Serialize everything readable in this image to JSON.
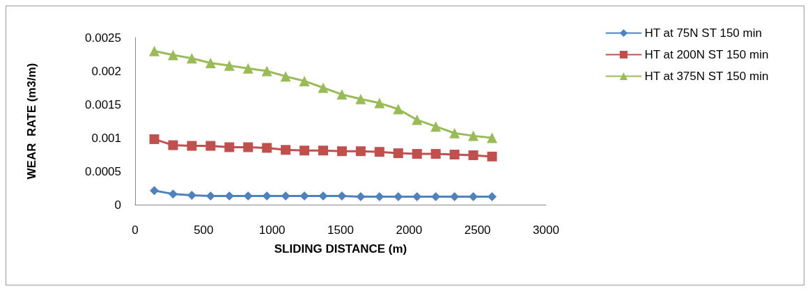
{
  "chart_data": {
    "type": "line",
    "xlabel": "SLIDING DISTANCE (m)",
    "ylabel": "WEAR  RATE (m3/m)",
    "x": [
      140,
      277,
      414,
      551,
      688,
      825,
      962,
      1099,
      1236,
      1373,
      1510,
      1647,
      1784,
      1921,
      2058,
      2195,
      2332,
      2469,
      2606
    ],
    "xlim": [
      0,
      3000
    ],
    "xticks": [
      0,
      500,
      1000,
      1500,
      2000,
      2500,
      3000
    ],
    "ylim": [
      0,
      0.0025
    ],
    "yticks": [
      0,
      0.0005,
      0.001,
      0.0015,
      0.002,
      0.0025
    ],
    "grid": false,
    "legend": "right",
    "series": [
      {
        "name": "HT at 75N ST 150 min",
        "color": "#4f81bd",
        "marker": "diamond",
        "values": [
          0.00021,
          0.00016,
          0.00014,
          0.00013,
          0.00013,
          0.00013,
          0.00013,
          0.00013,
          0.00013,
          0.00013,
          0.00013,
          0.00012,
          0.00012,
          0.00012,
          0.00012,
          0.00012,
          0.00012,
          0.00012,
          0.00012
        ]
      },
      {
        "name": "HT at 200N ST 150 min",
        "color": "#c0504d",
        "marker": "square",
        "values": [
          0.00098,
          0.00089,
          0.00088,
          0.00088,
          0.00086,
          0.00086,
          0.00085,
          0.00082,
          0.00081,
          0.00081,
          0.0008,
          0.0008,
          0.00079,
          0.00077,
          0.00076,
          0.00076,
          0.00075,
          0.00074,
          0.00072
        ]
      },
      {
        "name": "HT at 375N ST 150 min",
        "color": "#9bbb59",
        "marker": "triangle",
        "values": [
          0.0023,
          0.00224,
          0.00219,
          0.00212,
          0.00208,
          0.00204,
          0.002,
          0.00192,
          0.00185,
          0.00175,
          0.00165,
          0.00158,
          0.00152,
          0.00143,
          0.00127,
          0.00117,
          0.00107,
          0.00103,
          0.001
        ]
      }
    ]
  }
}
